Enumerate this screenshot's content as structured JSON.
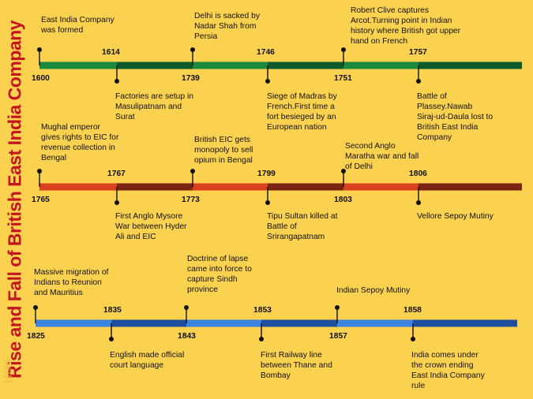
{
  "title": "Rise and Fall of British East India Company",
  "title_reflection": "Rise",
  "colors": {
    "background": "#fbd150",
    "title": "#c3151f",
    "row1_light": "#1a8a3e",
    "row1_dark": "#0b5a2c",
    "row2_light": "#d9401e",
    "row2_dark": "#7b2413",
    "row3_light": "#3b84e0",
    "row3_dark": "#1d4f9e"
  },
  "rows": [
    {
      "years": [
        {
          "year": "1600",
          "pos": "below"
        },
        {
          "year": "1614",
          "pos": "above"
        },
        {
          "year": "1739",
          "pos": "below"
        },
        {
          "year": "1746",
          "pos": "above"
        },
        {
          "year": "1751",
          "pos": "below"
        },
        {
          "year": "1757",
          "pos": "above"
        }
      ],
      "events": [
        {
          "text": "East India Company\nwas formed",
          "side": "above"
        },
        {
          "text": "Factories are setup in\nMasulipatnam and\nSurat",
          "side": "below"
        },
        {
          "text": "Delhi is sacked by\nNadar Shah from\nPersia",
          "side": "above"
        },
        {
          "text": "Siege of Madras by\nFrench.First time a\nfort besieged by an\nEuropean nation",
          "side": "below"
        },
        {
          "text": "Robert Clive captures\nArcot.Turning point in Indian\nhistory where British got upper\nhand on French",
          "side": "above"
        },
        {
          "text": "Battle of\nPlassey.Nawab\nSiraj-ud-Daula lost to\nBritish East India\nCompany",
          "side": "below"
        }
      ]
    },
    {
      "years": [
        {
          "year": "1765",
          "pos": "below"
        },
        {
          "year": "1767",
          "pos": "above"
        },
        {
          "year": "1773",
          "pos": "below"
        },
        {
          "year": "1799",
          "pos": "above"
        },
        {
          "year": "1803",
          "pos": "below"
        },
        {
          "year": "1806",
          "pos": "above"
        }
      ],
      "events": [
        {
          "text": "Mughal emperor\ngives rights to EIC for\nrevenue collection in\nBengal",
          "side": "above"
        },
        {
          "text": "First Anglo Mysore\nWar between Hyder\nAli and EIC",
          "side": "below"
        },
        {
          "text": "British EIC gets\nmonopoly to sell\nopium in Bengal",
          "side": "above"
        },
        {
          "text": "Tipu Sultan killed at\nBattle of\nSrirangapatnam",
          "side": "below"
        },
        {
          "text": "Second Anglo\nMaratha war and fall\nof Delhi",
          "side": "above"
        },
        {
          "text": "Vellore Sepoy Mutiny",
          "side": "below"
        }
      ]
    },
    {
      "years": [
        {
          "year": "1825",
          "pos": "below"
        },
        {
          "year": "1835",
          "pos": "above"
        },
        {
          "year": "1843",
          "pos": "below"
        },
        {
          "year": "1853",
          "pos": "above"
        },
        {
          "year": "1857",
          "pos": "below"
        },
        {
          "year": "1858",
          "pos": "above"
        }
      ],
      "events": [
        {
          "text": "Massive migration of\nIndians to Reunion\nand Mauritius",
          "side": "above"
        },
        {
          "text": "English made official\ncourt language",
          "side": "below"
        },
        {
          "text": "Doctrine of lapse\ncame into force to\ncapture Sindh\nprovince",
          "side": "above"
        },
        {
          "text": "First Railway line\nbetween Thane and\nBombay",
          "side": "below"
        },
        {
          "text": "Indian Sepoy Mutiny",
          "side": "above"
        },
        {
          "text": "India comes under\nthe crown ending\nEast India Company\nrule",
          "side": "below"
        }
      ]
    }
  ]
}
